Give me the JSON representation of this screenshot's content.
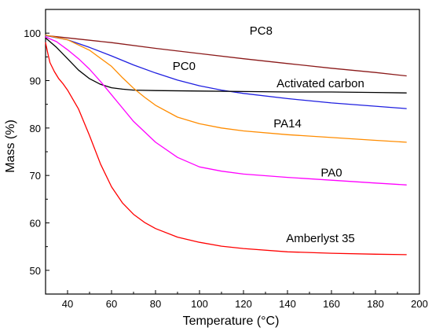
{
  "chart_data": {
    "type": "line",
    "xlabel": "Temperature (°C)",
    "ylabel": "Mass (%)",
    "xlim": [
      30,
      200
    ],
    "ylim": [
      45,
      105
    ],
    "xticks": [
      "40",
      "60",
      "80",
      "100",
      "120",
      "140",
      "160",
      "180",
      "200"
    ],
    "yticks": [
      "50",
      "60",
      "70",
      "80",
      "90",
      "100"
    ],
    "xticks_values": [
      40,
      60,
      80,
      100,
      120,
      140,
      160,
      180,
      200
    ],
    "yticks_values": [
      50,
      60,
      70,
      80,
      90,
      100
    ],
    "grid": false,
    "legend": "none",
    "series": [
      {
        "name": "PC8",
        "color": "#8b1a1a",
        "label_anchor": [
          128,
          99.7
        ],
        "x": [
          30,
          40,
          60,
          80,
          100,
          120,
          140,
          160,
          180,
          194
        ],
        "y": [
          99.5,
          99.0,
          98.0,
          96.8,
          95.7,
          94.6,
          93.6,
          92.6,
          91.7,
          91.0
        ]
      },
      {
        "name": "PC0",
        "color": "#1f1fe0",
        "label_anchor": [
          93,
          92.2
        ],
        "x": [
          30,
          40,
          50,
          60,
          70,
          80,
          90,
          100,
          110,
          120,
          140,
          160,
          180,
          194
        ],
        "y": [
          99.5,
          98.6,
          97.0,
          95.2,
          93.3,
          91.6,
          90.1,
          88.9,
          88.0,
          87.3,
          86.2,
          85.3,
          84.6,
          84.1
        ]
      },
      {
        "name": "Activated carbon",
        "color": "#000000",
        "label_anchor": [
          155,
          88.6
        ],
        "x": [
          30,
          35,
          40,
          45,
          50,
          55,
          60,
          65,
          70,
          80,
          100,
          120,
          140,
          160,
          180,
          194
        ],
        "y": [
          99.0,
          97.0,
          94.6,
          92.2,
          90.4,
          89.2,
          88.5,
          88.2,
          88.0,
          87.9,
          87.8,
          87.7,
          87.6,
          87.6,
          87.5,
          87.4
        ]
      },
      {
        "name": "PA14",
        "color": "#ff8c00",
        "label_anchor": [
          140,
          80.1
        ],
        "x": [
          30,
          40,
          50,
          60,
          65,
          70,
          75,
          80,
          90,
          100,
          110,
          120,
          140,
          160,
          180,
          194
        ],
        "y": [
          99.6,
          98.6,
          96.4,
          93.0,
          90.6,
          88.4,
          86.5,
          84.8,
          82.3,
          80.9,
          80.0,
          79.4,
          78.6,
          78.0,
          77.4,
          77.0
        ]
      },
      {
        "name": "PA0",
        "color": "#ff00ff",
        "label_anchor": [
          160,
          69.8
        ],
        "x": [
          30,
          35,
          40,
          45,
          50,
          55,
          60,
          65,
          70,
          80,
          90,
          100,
          110,
          120,
          140,
          160,
          180,
          194
        ],
        "y": [
          99.2,
          98.2,
          96.5,
          94.6,
          92.4,
          89.8,
          87.0,
          84.2,
          81.4,
          77.0,
          73.8,
          71.8,
          70.9,
          70.3,
          69.6,
          69.0,
          68.4,
          68.0
        ]
      },
      {
        "name": "Amberlyst 35",
        "color": "#ff0000",
        "label_anchor": [
          155,
          55.9
        ],
        "x": [
          30,
          31,
          32,
          34,
          36,
          38,
          40,
          45,
          50,
          55,
          60,
          65,
          70,
          75,
          80,
          90,
          100,
          110,
          120,
          140,
          160,
          180,
          194
        ],
        "y": [
          98.0,
          95.8,
          93.8,
          91.9,
          90.4,
          89.3,
          88.0,
          84.0,
          78.4,
          72.4,
          67.6,
          64.2,
          61.8,
          60.1,
          58.8,
          57.0,
          55.9,
          55.1,
          54.6,
          53.9,
          53.6,
          53.4,
          53.3
        ]
      }
    ]
  }
}
